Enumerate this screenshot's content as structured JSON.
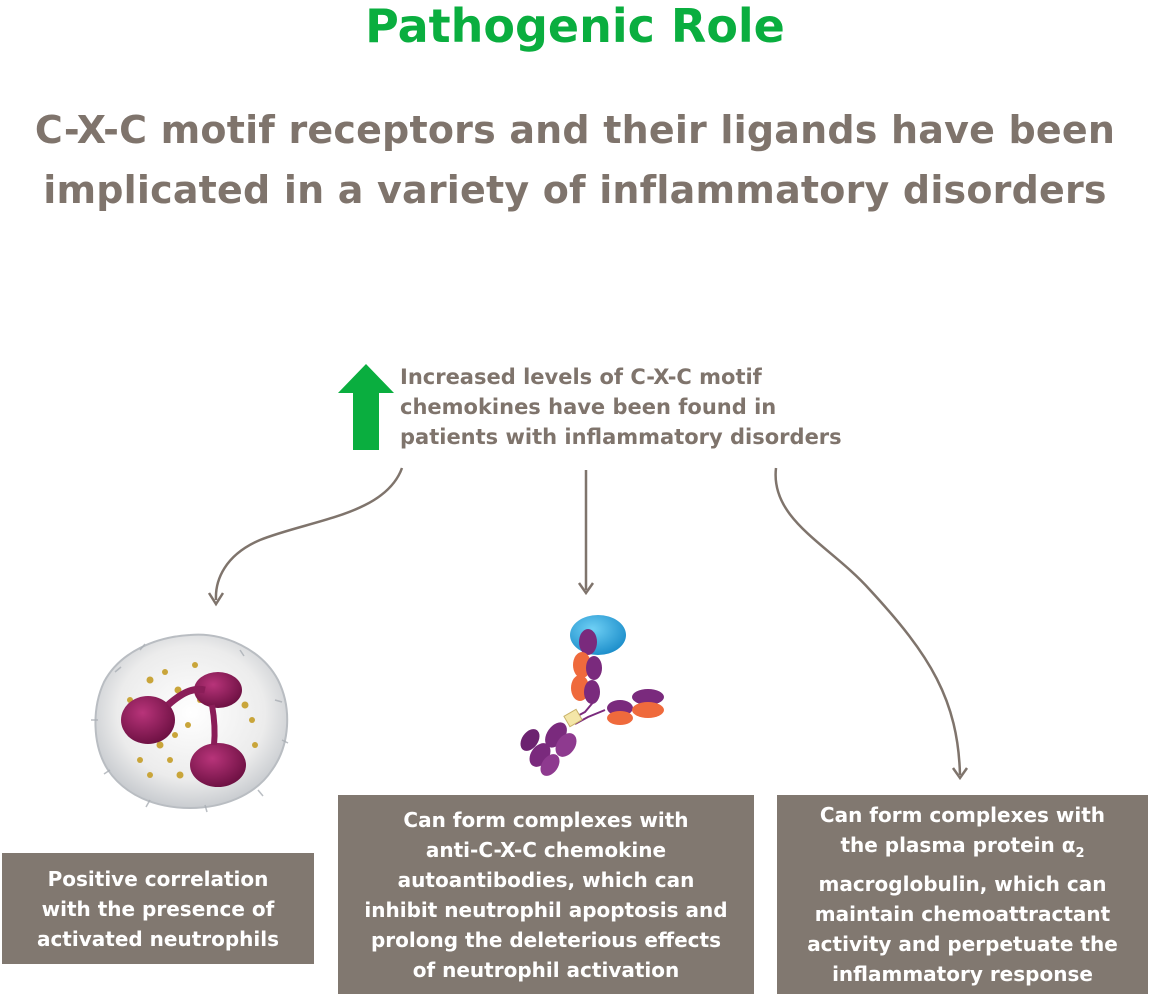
{
  "title": "Pathogenic Role",
  "subtitle_line1": "C-X-C motif receptors and their ligands have been",
  "subtitle_line2": "implicated in a variety of inflammatory disorders",
  "increase": {
    "line1": "Increased levels of C-X-C motif",
    "line2": "chemokines have been found in",
    "line3": "patients with inflammatory disorders"
  },
  "boxes": [
    {
      "lines": [
        "Positive correlation",
        "with the presence of",
        "activated neutrophils"
      ]
    },
    {
      "lines": [
        "Can form complexes with",
        "anti-C-X-C chemokine",
        "autoantibodies, which can",
        "inhibit neutrophil apoptosis and",
        "prolong the deleterious effects",
        "of neutrophil activation"
      ]
    },
    {
      "line1": "Can form complexes with",
      "line2_prefix": "the plasma protein ",
      "line2_alpha": "α",
      "line2_sub": "2",
      "line3": "macroglobulin, which can",
      "line4": "maintain chemoattractant",
      "line5": "activity and perpetuate the",
      "line6": "inflammatory response"
    }
  ],
  "colors": {
    "green": "#0aae3f",
    "taupe": "#7f746c",
    "box": "#817870"
  },
  "icons": [
    "up-arrow-icon",
    "neutrophil-cell-image",
    "antibody-complex-image"
  ]
}
